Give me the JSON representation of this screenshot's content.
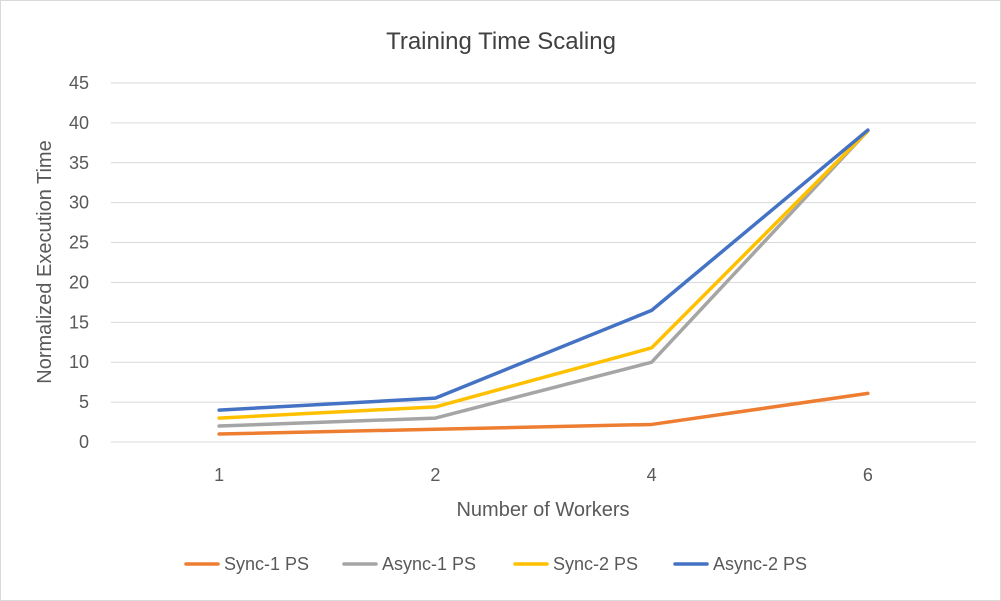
{
  "chart_data": {
    "type": "line",
    "title": "Training Time Scaling",
    "xlabel": "Number of Workers",
    "ylabel": "Normalized Execution Time",
    "categories": [
      "1",
      "2",
      "4",
      "6"
    ],
    "ylim": [
      0,
      45
    ],
    "yticks": [
      0,
      5,
      10,
      15,
      20,
      25,
      30,
      35,
      40,
      45
    ],
    "grid": true,
    "legend_position": "bottom",
    "series": [
      {
        "name": "Sync-1 PS",
        "color": "#ed7d31",
        "values": [
          1.0,
          1.6,
          2.2,
          6.1
        ]
      },
      {
        "name": "Async-1 PS",
        "color": "#a5a5a5",
        "values": [
          2.0,
          3.0,
          10.0,
          39.0
        ]
      },
      {
        "name": "Sync-2 PS",
        "color": "#ffc000",
        "values": [
          3.0,
          4.4,
          11.8,
          39.0
        ]
      },
      {
        "name": "Async-2 PS",
        "color": "#4472c4",
        "values": [
          4.0,
          5.5,
          16.5,
          39.1
        ]
      }
    ]
  }
}
